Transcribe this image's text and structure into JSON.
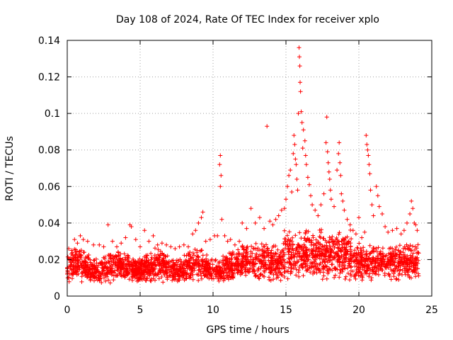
{
  "chart_data": {
    "type": "scatter",
    "title": "Day 108 of 2024, Rate Of TEC Index for receiver xplo",
    "xlabel": "GPS time / hours",
    "ylabel": "ROTI / TECUs",
    "xlim": [
      0,
      25
    ],
    "ylim": [
      0,
      0.14
    ],
    "xticks": [
      0,
      5,
      10,
      15,
      20,
      25
    ],
    "xtick_labels": [
      "0",
      "5",
      "10",
      "15",
      "20",
      "25"
    ],
    "yticks": [
      0,
      0.02,
      0.04,
      0.06,
      0.08,
      0.1,
      0.12,
      0.14
    ],
    "ytick_labels": [
      "0",
      "0.02",
      "0.04",
      "0.06",
      "0.08",
      "0.1",
      "0.12",
      "0.14"
    ],
    "grid": true,
    "marker": "+",
    "color": "#ff0000",
    "series": [
      {
        "name": "ROTI",
        "points": [
          [
            0.1,
            0.026
          ],
          [
            0.3,
            0.025
          ],
          [
            0.5,
            0.031
          ],
          [
            0.7,
            0.029
          ],
          [
            0.9,
            0.033
          ],
          [
            1.1,
            0.031
          ],
          [
            1.4,
            0.03
          ],
          [
            1.8,
            0.028
          ],
          [
            2.2,
            0.028
          ],
          [
            2.5,
            0.027
          ],
          [
            2.8,
            0.039
          ],
          [
            3.1,
            0.03
          ],
          [
            3.4,
            0.027
          ],
          [
            3.7,
            0.029
          ],
          [
            4.0,
            0.032
          ],
          [
            4.3,
            0.039
          ],
          [
            4.4,
            0.038
          ],
          [
            4.7,
            0.031
          ],
          [
            5.0,
            0.027
          ],
          [
            5.3,
            0.036
          ],
          [
            5.6,
            0.03
          ],
          [
            5.9,
            0.033
          ],
          [
            6.2,
            0.028
          ],
          [
            6.5,
            0.029
          ],
          [
            6.8,
            0.028
          ],
          [
            7.1,
            0.027
          ],
          [
            7.4,
            0.026
          ],
          [
            7.7,
            0.027
          ],
          [
            8.0,
            0.028
          ],
          [
            8.3,
            0.027
          ],
          [
            8.6,
            0.034
          ],
          [
            8.8,
            0.036
          ],
          [
            9.0,
            0.04
          ],
          [
            9.2,
            0.043
          ],
          [
            9.3,
            0.046
          ],
          [
            9.5,
            0.03
          ],
          [
            9.8,
            0.031
          ],
          [
            10.1,
            0.033
          ],
          [
            10.3,
            0.033
          ],
          [
            10.5,
            0.077
          ],
          [
            10.45,
            0.072
          ],
          [
            10.55,
            0.066
          ],
          [
            10.5,
            0.06
          ],
          [
            10.6,
            0.042
          ],
          [
            10.8,
            0.033
          ],
          [
            11.0,
            0.03
          ],
          [
            11.2,
            0.031
          ],
          [
            11.5,
            0.028
          ],
          [
            11.8,
            0.03
          ],
          [
            12.0,
            0.04
          ],
          [
            12.3,
            0.037
          ],
          [
            12.6,
            0.048
          ],
          [
            12.9,
            0.04
          ],
          [
            13.2,
            0.043
          ],
          [
            13.5,
            0.037
          ],
          [
            13.7,
            0.093
          ],
          [
            13.9,
            0.041
          ],
          [
            14.1,
            0.039
          ],
          [
            14.3,
            0.042
          ],
          [
            14.5,
            0.044
          ],
          [
            14.7,
            0.047
          ],
          [
            14.9,
            0.048
          ],
          [
            15.0,
            0.053
          ],
          [
            15.1,
            0.06
          ],
          [
            15.2,
            0.066
          ],
          [
            15.3,
            0.069
          ],
          [
            15.4,
            0.057
          ],
          [
            15.5,
            0.078
          ],
          [
            15.55,
            0.088
          ],
          [
            15.6,
            0.083
          ],
          [
            15.65,
            0.075
          ],
          [
            15.7,
            0.072
          ],
          [
            15.75,
            0.064
          ],
          [
            15.8,
            0.058
          ],
          [
            15.85,
            0.1
          ],
          [
            15.9,
            0.136
          ],
          [
            15.92,
            0.131
          ],
          [
            15.95,
            0.126
          ],
          [
            15.97,
            0.117
          ],
          [
            16.0,
            0.112
          ],
          [
            16.05,
            0.101
          ],
          [
            16.1,
            0.095
          ],
          [
            16.15,
            0.081
          ],
          [
            16.2,
            0.091
          ],
          [
            16.3,
            0.085
          ],
          [
            16.35,
            0.077
          ],
          [
            16.4,
            0.072
          ],
          [
            16.5,
            0.065
          ],
          [
            16.6,
            0.061
          ],
          [
            16.7,
            0.055
          ],
          [
            16.8,
            0.05
          ],
          [
            17.0,
            0.047
          ],
          [
            17.2,
            0.044
          ],
          [
            17.4,
            0.05
          ],
          [
            17.6,
            0.056
          ],
          [
            17.75,
            0.084
          ],
          [
            17.8,
            0.098
          ],
          [
            17.85,
            0.079
          ],
          [
            17.9,
            0.073
          ],
          [
            17.95,
            0.068
          ],
          [
            18.0,
            0.064
          ],
          [
            18.05,
            0.058
          ],
          [
            18.1,
            0.053
          ],
          [
            18.3,
            0.049
          ],
          [
            18.5,
            0.069
          ],
          [
            18.6,
            0.078
          ],
          [
            18.65,
            0.084
          ],
          [
            18.7,
            0.073
          ],
          [
            18.75,
            0.066
          ],
          [
            18.8,
            0.056
          ],
          [
            18.9,
            0.052
          ],
          [
            19.0,
            0.047
          ],
          [
            19.2,
            0.042
          ],
          [
            19.4,
            0.039
          ],
          [
            19.6,
            0.036
          ],
          [
            19.8,
            0.034
          ],
          [
            20.0,
            0.043
          ],
          [
            20.2,
            0.032
          ],
          [
            20.4,
            0.035
          ],
          [
            20.5,
            0.088
          ],
          [
            20.55,
            0.083
          ],
          [
            20.6,
            0.08
          ],
          [
            20.65,
            0.077
          ],
          [
            20.7,
            0.072
          ],
          [
            20.75,
            0.067
          ],
          [
            20.8,
            0.058
          ],
          [
            20.9,
            0.05
          ],
          [
            21.0,
            0.044
          ],
          [
            21.2,
            0.06
          ],
          [
            21.3,
            0.055
          ],
          [
            21.4,
            0.049
          ],
          [
            21.6,
            0.045
          ],
          [
            21.8,
            0.038
          ],
          [
            22.0,
            0.035
          ],
          [
            22.3,
            0.036
          ],
          [
            22.6,
            0.037
          ],
          [
            22.9,
            0.034
          ],
          [
            23.1,
            0.036
          ],
          [
            23.3,
            0.04
          ],
          [
            23.5,
            0.045
          ],
          [
            23.6,
            0.052
          ],
          [
            23.7,
            0.048
          ],
          [
            23.8,
            0.04
          ],
          [
            23.9,
            0.039
          ],
          [
            24.0,
            0.036
          ]
        ]
      }
    ]
  }
}
